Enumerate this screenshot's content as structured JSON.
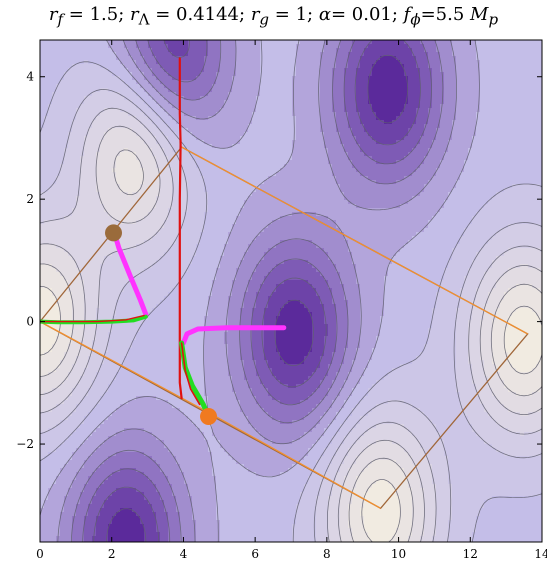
{
  "chart_data": {
    "type": "contour",
    "title": {
      "r_f": "1.5",
      "r_lambda": "0.4144",
      "r_g": "1",
      "alpha": "0.01",
      "f_phi": "5.5",
      "f_phi_unit": "M",
      "f_phi_unit_sub": "p"
    },
    "xlim": [
      0,
      14
    ],
    "ylim": [
      -3.6,
      4.6
    ],
    "xticks": [
      0,
      2,
      4,
      6,
      8,
      10,
      12,
      14
    ],
    "yticks": [
      -2,
      0,
      2,
      4
    ],
    "colors": {
      "contour_low": "#5b2a9b",
      "contour_high": "#f1ebe1",
      "contour_line": "#5f5f6f",
      "red_trajectory": "#e01010",
      "green_trajectory": "#22dd22",
      "magenta_trajectory": "#ff33ff",
      "brown_rectangle": "#a0673a",
      "orange_rectangle": "#f09030",
      "brown_marker": "#9a6b3b",
      "orange_marker": "#f07a20"
    },
    "potential_minima": [
      [
        3.6,
        4.3
      ],
      [
        9.7,
        3.8
      ],
      [
        7.1,
        -0.2
      ],
      [
        2.4,
        -3.6
      ]
    ],
    "potential_maxima": [
      [
        2.7,
        2.8
      ],
      [
        0,
        0
      ],
      [
        13.5,
        -0.3
      ],
      [
        9.5,
        -3.1
      ]
    ],
    "rectangles": [
      {
        "name": "brown",
        "points": [
          [
            0,
            0
          ],
          [
            3.95,
            2.85
          ],
          [
            13.6,
            -0.2
          ],
          [
            9.5,
            -3.05
          ],
          [
            0,
            0
          ]
        ]
      },
      {
        "name": "orange",
        "points": [
          [
            0,
            0
          ],
          [
            4.75,
            -1.5
          ],
          [
            9.5,
            -3.05
          ]
        ]
      },
      {
        "name": "orange-upper",
        "points": [
          [
            3.95,
            2.85
          ],
          [
            13.6,
            -0.2
          ]
        ]
      }
    ],
    "markers": [
      {
        "name": "brown-point",
        "x": 2.05,
        "y": 1.45
      },
      {
        "name": "orange-point",
        "x": 4.7,
        "y": -1.55
      }
    ],
    "series": [
      {
        "name": "red-vertical",
        "points": [
          [
            3.9,
            4.3
          ],
          [
            3.9,
            3.4
          ],
          [
            3.92,
            2.9
          ],
          [
            3.9,
            2.0
          ],
          [
            3.9,
            0.5
          ],
          [
            3.9,
            -1.0
          ],
          [
            3.95,
            -1.25
          ]
        ]
      },
      {
        "name": "magenta-upper",
        "points": [
          [
            2.1,
            1.4
          ],
          [
            2.2,
            1.2
          ],
          [
            2.55,
            0.7
          ],
          [
            2.8,
            0.35
          ],
          [
            2.95,
            0.12
          ]
        ]
      },
      {
        "name": "green-lower",
        "points": [
          [
            0,
            0
          ],
          [
            0.5,
            -0.01
          ],
          [
            1.2,
            -0.01
          ],
          [
            2.0,
            0.0
          ],
          [
            2.6,
            0.02
          ],
          [
            2.95,
            0.08
          ]
        ]
      },
      {
        "name": "red-lower",
        "points": [
          [
            0,
            0
          ],
          [
            0.8,
            0.0
          ],
          [
            1.6,
            0.0
          ],
          [
            2.4,
            0.03
          ],
          [
            2.9,
            0.1
          ]
        ]
      },
      {
        "name": "magenta-right",
        "points": [
          [
            4.0,
            -0.35
          ],
          [
            4.1,
            -0.2
          ],
          [
            4.4,
            -0.12
          ],
          [
            5.2,
            -0.1
          ],
          [
            6.0,
            -0.1
          ],
          [
            6.8,
            -0.1
          ]
        ]
      },
      {
        "name": "green-right",
        "points": [
          [
            3.95,
            -0.35
          ],
          [
            4.05,
            -0.75
          ],
          [
            4.25,
            -1.05
          ],
          [
            4.55,
            -1.35
          ],
          [
            4.7,
            -1.55
          ]
        ]
      },
      {
        "name": "red-right",
        "points": [
          [
            3.95,
            -0.35
          ],
          [
            4.05,
            -0.8
          ],
          [
            4.2,
            -1.1
          ],
          [
            4.45,
            -1.35
          ]
        ]
      }
    ]
  }
}
